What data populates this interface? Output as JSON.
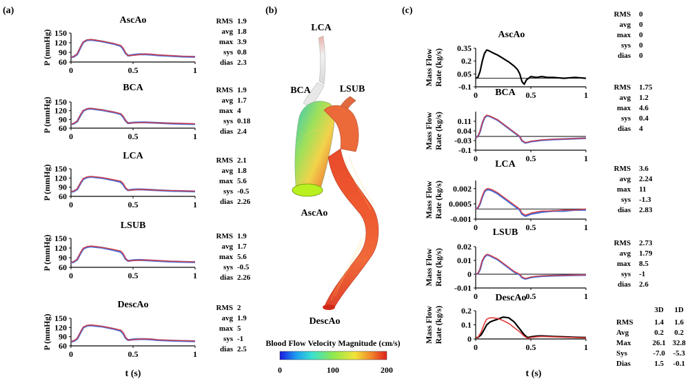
{
  "panel_labels": {
    "a": "(a)",
    "b": "(b)",
    "c": "(c)"
  },
  "colors": {
    "series_3d": "#e03a3a",
    "series_1d": "#4a6fd8",
    "mass_flow_line": "#000000",
    "zero_line": "#000000"
  },
  "panel_a": {
    "ylabel": "P (mmHg)",
    "xlabel": "t (s)"
  },
  "panel_b": {
    "vessel_labels": {
      "lca": "LCA",
      "bca": "BCA",
      "lsub": "LSUB",
      "ascao": "AscAo",
      "descao": "DescAo"
    },
    "colorbar": {
      "title": "Blood Flow Velocity Magnitude (cm/s)",
      "ticks": [
        "0",
        "100",
        "200"
      ]
    }
  },
  "panel_c": {
    "ylabel_line1": "Mass Flow",
    "ylabel_line2": "Rate (kg/s)",
    "xlabel": "t (s)",
    "table_headers": [
      "3D",
      "1D"
    ]
  },
  "stats_a": [
    {
      "rows": [
        [
          "RMS",
          "1.9"
        ],
        [
          "avg",
          "1.8"
        ],
        [
          "max",
          "3.9"
        ],
        [
          "sys",
          "0.8"
        ],
        [
          "dias",
          "2.3"
        ]
      ]
    },
    {
      "rows": [
        [
          "RMS",
          "1.9"
        ],
        [
          "avg",
          "1.7"
        ],
        [
          "max",
          "4"
        ],
        [
          "sys",
          "0.18"
        ],
        [
          "dias",
          "2.4"
        ]
      ]
    },
    {
      "rows": [
        [
          "RMS",
          "2.1"
        ],
        [
          "avg",
          "1.8"
        ],
        [
          "max",
          "5.6"
        ],
        [
          "sys",
          "-0.5"
        ],
        [
          "dias",
          "2.26"
        ]
      ]
    },
    {
      "rows": [
        [
          "RMS",
          "1.9"
        ],
        [
          "avg",
          "1.7"
        ],
        [
          "max",
          "5.6"
        ],
        [
          "sys",
          "-0.5"
        ],
        [
          "dias",
          "2.26"
        ]
      ]
    },
    {
      "rows": [
        [
          "RMS",
          "2"
        ],
        [
          "avg",
          "1.9"
        ],
        [
          "max",
          "5"
        ],
        [
          "sys",
          "-1"
        ],
        [
          "dias",
          "2.5"
        ]
      ]
    }
  ],
  "stats_c": [
    {
      "rows": [
        [
          "RMS",
          "0"
        ],
        [
          "avg",
          "0"
        ],
        [
          "max",
          "0"
        ],
        [
          "sys",
          "0"
        ],
        [
          "dias",
          "0"
        ]
      ]
    },
    {
      "rows": [
        [
          "RMS",
          "1.75"
        ],
        [
          "avg",
          "1.2"
        ],
        [
          "max",
          "4.6"
        ],
        [
          "sys",
          "0.4"
        ],
        [
          "dias",
          "4"
        ]
      ]
    },
    {
      "rows": [
        [
          "RMS",
          "3.6"
        ],
        [
          "avg",
          "2.24"
        ],
        [
          "max",
          "11"
        ],
        [
          "sys",
          "-1.3"
        ],
        [
          "dias",
          "2.83"
        ]
      ]
    },
    {
      "rows": [
        [
          "RMS",
          "2.73"
        ],
        [
          "avg",
          "1.79"
        ],
        [
          "max",
          "8.5"
        ],
        [
          "sys",
          "-1"
        ],
        [
          "dias",
          "2.6"
        ]
      ]
    },
    {
      "rows": [
        [
          "RMS",
          "1.4",
          "1.6"
        ],
        [
          "Avg",
          "0.2",
          "0.2"
        ],
        [
          "Max",
          "26.1",
          "32.8"
        ],
        [
          "Sys",
          "-7.0",
          "-5.3"
        ],
        [
          "Dias",
          "1.5",
          "-0.1"
        ]
      ]
    }
  ],
  "chart_data": [
    {
      "type": "line",
      "title": "AscAo",
      "ylabel": "P (mmHg)",
      "xlabel": "",
      "xlim": [
        0,
        1
      ],
      "ylim": [
        60,
        150
      ],
      "xticks": [
        "0",
        "0.5",
        "1"
      ],
      "yticks": [
        "60",
        "90",
        "120",
        "150"
      ],
      "x": [
        0,
        0.02,
        0.05,
        0.08,
        0.1,
        0.13,
        0.16,
        0.2,
        0.25,
        0.3,
        0.35,
        0.4,
        0.42,
        0.44,
        0.46,
        0.5,
        0.55,
        0.6,
        0.65,
        0.7,
        0.8,
        0.9,
        1.0
      ],
      "series": [
        {
          "values": [
            76,
            77,
            85,
            110,
            123,
            129,
            130,
            128,
            125,
            121,
            117,
            112,
            104,
            88,
            80,
            81,
            83,
            85,
            84,
            82,
            80,
            78,
            77
          ]
        },
        {
          "values": [
            75,
            76,
            84,
            108,
            122,
            128,
            129,
            127,
            124,
            120,
            116,
            110,
            101,
            87,
            80,
            82,
            84,
            84,
            83,
            81,
            79,
            77,
            76
          ]
        }
      ]
    },
    {
      "type": "line",
      "title": "BCA",
      "ylabel": "P (mmHg)",
      "xlabel": "",
      "xlim": [
        0,
        1
      ],
      "ylim": [
        60,
        150
      ],
      "xticks": [
        "0",
        "0.5",
        "1"
      ],
      "yticks": [
        "60",
        "90",
        "120",
        "150"
      ],
      "x": [
        0,
        0.02,
        0.05,
        0.08,
        0.1,
        0.13,
        0.16,
        0.2,
        0.25,
        0.3,
        0.35,
        0.4,
        0.42,
        0.44,
        0.46,
        0.5,
        0.55,
        0.6,
        0.65,
        0.7,
        0.8,
        0.9,
        1.0
      ],
      "series": [
        {
          "values": [
            75,
            76,
            84,
            109,
            121,
            127,
            128,
            126,
            123,
            119,
            115,
            110,
            102,
            86,
            77,
            78,
            79,
            80,
            79,
            78,
            77,
            76,
            75
          ]
        },
        {
          "values": [
            74,
            75,
            83,
            107,
            120,
            126,
            127,
            125,
            122,
            118,
            114,
            108,
            99,
            85,
            77,
            79,
            80,
            80,
            79,
            78,
            76,
            75,
            74
          ]
        }
      ]
    },
    {
      "type": "line",
      "title": "LCA",
      "ylabel": "P (mmHg)",
      "xlabel": "",
      "xlim": [
        0,
        1
      ],
      "ylim": [
        60,
        150
      ],
      "xticks": [
        "0",
        "0.5",
        "1"
      ],
      "yticks": [
        "60",
        "90",
        "120",
        "150"
      ],
      "x": [
        0,
        0.02,
        0.05,
        0.08,
        0.1,
        0.13,
        0.16,
        0.2,
        0.25,
        0.3,
        0.35,
        0.4,
        0.42,
        0.44,
        0.46,
        0.5,
        0.55,
        0.6,
        0.65,
        0.7,
        0.8,
        0.9,
        1.0
      ],
      "series": [
        {
          "values": [
            76,
            77,
            84,
            107,
            119,
            124,
            125,
            124,
            121,
            118,
            114,
            110,
            103,
            88,
            80,
            81,
            82,
            82,
            81,
            80,
            79,
            78,
            77
          ]
        },
        {
          "values": [
            75,
            76,
            83,
            105,
            117,
            122,
            124,
            122,
            120,
            116,
            112,
            107,
            99,
            86,
            80,
            82,
            83,
            82,
            81,
            80,
            78,
            77,
            76
          ]
        }
      ]
    },
    {
      "type": "line",
      "title": "LSUB",
      "ylabel": "P (mmHg)",
      "xlabel": "",
      "xlim": [
        0,
        1
      ],
      "ylim": [
        60,
        150
      ],
      "xticks": [
        "0",
        "0.5",
        "1"
      ],
      "yticks": [
        "60",
        "90",
        "120",
        "150"
      ],
      "x": [
        0,
        0.02,
        0.05,
        0.08,
        0.1,
        0.13,
        0.16,
        0.2,
        0.25,
        0.3,
        0.35,
        0.4,
        0.42,
        0.44,
        0.46,
        0.5,
        0.55,
        0.6,
        0.65,
        0.7,
        0.8,
        0.9,
        1.0
      ],
      "series": [
        {
          "values": [
            76,
            77,
            85,
            108,
            120,
            125,
            126,
            125,
            122,
            119,
            115,
            111,
            103,
            87,
            80,
            81,
            82,
            83,
            82,
            81,
            79,
            78,
            77
          ]
        },
        {
          "values": [
            75,
            76,
            84,
            106,
            118,
            123,
            125,
            123,
            121,
            117,
            113,
            108,
            100,
            86,
            80,
            82,
            83,
            82,
            81,
            80,
            78,
            77,
            76
          ]
        }
      ]
    },
    {
      "type": "line",
      "title": "DescAo",
      "ylabel": "P (mmHg)",
      "xlabel": "t (s)",
      "xlim": [
        0,
        1
      ],
      "ylim": [
        60,
        150
      ],
      "xticks": [
        "0",
        "0.5",
        "1"
      ],
      "yticks": [
        "60",
        "90",
        "120",
        "150"
      ],
      "x": [
        0,
        0.02,
        0.05,
        0.08,
        0.1,
        0.13,
        0.16,
        0.2,
        0.25,
        0.3,
        0.35,
        0.4,
        0.42,
        0.44,
        0.46,
        0.5,
        0.55,
        0.6,
        0.65,
        0.7,
        0.8,
        0.9,
        1.0
      ],
      "series": [
        {
          "values": [
            75,
            76,
            84,
            108,
            122,
            127,
            128,
            127,
            124,
            120,
            116,
            112,
            104,
            88,
            79,
            80,
            82,
            83,
            82,
            80,
            78,
            77,
            76
          ]
        },
        {
          "values": [
            74,
            75,
            83,
            106,
            120,
            126,
            127,
            125,
            123,
            119,
            115,
            109,
            101,
            86,
            79,
            81,
            82,
            82,
            81,
            79,
            77,
            76,
            75
          ]
        }
      ]
    },
    {
      "type": "line",
      "title": "AscAo",
      "ylabel": "Mass Flow Rate (kg/s)",
      "xlabel": "",
      "xlim": [
        0,
        1
      ],
      "ylim": [
        -0.1,
        0.35
      ],
      "xticks": [
        "0",
        "0.5",
        "1"
      ],
      "yticks": [
        "-0.1",
        "0.05",
        "0.2",
        "0.35"
      ],
      "x": [
        0,
        0.02,
        0.04,
        0.06,
        0.08,
        0.1,
        0.12,
        0.15,
        0.2,
        0.25,
        0.3,
        0.35,
        0.38,
        0.4,
        0.42,
        0.44,
        0.46,
        0.5,
        0.55,
        0.6,
        0.65,
        0.7,
        0.8,
        0.9,
        1.0
      ],
      "series": [
        {
          "values": [
            0.0,
            0.01,
            0.08,
            0.2,
            0.29,
            0.33,
            0.32,
            0.3,
            0.27,
            0.23,
            0.19,
            0.14,
            0.1,
            0.05,
            -0.04,
            -0.07,
            -0.02,
            0.02,
            0.01,
            0.02,
            0.01,
            0.01,
            0.0,
            0.01,
            0.0
          ]
        }
      ]
    },
    {
      "type": "line",
      "title": "BCA",
      "ylabel": "Mass Flow Rate (kg/s)",
      "xlabel": "",
      "xlim": [
        0,
        1
      ],
      "ylim": [
        -0.1,
        0.18
      ],
      "xticks": [
        "0",
        "0.5",
        "1"
      ],
      "yticks": [
        "-0.1",
        "-0.03",
        "0.04",
        "0.11"
      ],
      "x": [
        0,
        0.02,
        0.04,
        0.06,
        0.08,
        0.1,
        0.12,
        0.15,
        0.2,
        0.25,
        0.3,
        0.35,
        0.4,
        0.42,
        0.45,
        0.48,
        0.5,
        0.55,
        0.6,
        0.7,
        0.8,
        0.9,
        1.0
      ],
      "series": [
        {
          "values": [
            -0.01,
            0.0,
            0.04,
            0.1,
            0.14,
            0.155,
            0.15,
            0.14,
            0.12,
            0.09,
            0.06,
            0.03,
            0.0,
            -0.03,
            -0.045,
            -0.04,
            -0.035,
            -0.03,
            -0.025,
            -0.02,
            -0.018,
            -0.015,
            -0.012
          ]
        },
        {
          "values": [
            -0.01,
            0.0,
            0.035,
            0.095,
            0.135,
            0.15,
            0.148,
            0.138,
            0.118,
            0.088,
            0.058,
            0.028,
            -0.002,
            -0.032,
            -0.047,
            -0.042,
            -0.037,
            -0.032,
            -0.027,
            -0.022,
            -0.019,
            -0.016,
            -0.013
          ]
        }
      ]
    },
    {
      "type": "line",
      "title": "LCA",
      "ylabel": "Mass Flow Rate (kg/s)",
      "xlabel": "",
      "xlim": [
        0,
        1
      ],
      "ylim": [
        -0.001,
        0.0028
      ],
      "xticks": [
        "0",
        "0.5",
        "1"
      ],
      "yticks": [
        "-0.001",
        "0.0005",
        "0.002"
      ],
      "x": [
        0,
        0.02,
        0.04,
        0.06,
        0.08,
        0.1,
        0.12,
        0.15,
        0.2,
        0.25,
        0.3,
        0.35,
        0.4,
        0.42,
        0.45,
        0.48,
        0.5,
        0.55,
        0.6,
        0.7,
        0.8,
        0.9,
        1.0
      ],
      "series": [
        {
          "values": [
            0.0,
            0.0001,
            0.0006,
            0.0013,
            0.0018,
            0.002,
            0.002,
            0.0019,
            0.0016,
            0.0012,
            0.0008,
            0.0004,
            0.0,
            -0.0004,
            -0.0006,
            -0.0005,
            -0.0004,
            -0.0003,
            -0.0002,
            -0.0002,
            -0.0001,
            -0.0001,
            0.0
          ]
        },
        {
          "values": [
            0.0,
            0.0001,
            0.0005,
            0.0012,
            0.0017,
            0.0019,
            0.0019,
            0.0018,
            0.0015,
            0.0011,
            0.0007,
            0.0003,
            -0.0001,
            -0.0005,
            -0.0007,
            -0.0006,
            -0.0005,
            -0.0004,
            -0.0003,
            -0.0002,
            -0.0002,
            -0.0001,
            -0.0001
          ]
        }
      ]
    },
    {
      "type": "line",
      "title": "LSUB",
      "ylabel": "Mass Flow Rate (kg/s)",
      "xlabel": "",
      "xlim": [
        0,
        1
      ],
      "ylim": [
        -0.01,
        0.02
      ],
      "xticks": [
        "0",
        "0.5",
        "1"
      ],
      "yticks": [
        "-0.01",
        "0",
        "0.01",
        "0.02"
      ],
      "x": [
        0,
        0.02,
        0.04,
        0.06,
        0.08,
        0.1,
        0.12,
        0.15,
        0.2,
        0.25,
        0.3,
        0.35,
        0.4,
        0.42,
        0.45,
        0.48,
        0.5,
        0.55,
        0.6,
        0.7,
        0.8,
        0.9,
        1.0
      ],
      "series": [
        {
          "values": [
            0.0,
            0.0005,
            0.004,
            0.01,
            0.013,
            0.0145,
            0.0142,
            0.013,
            0.011,
            0.008,
            0.005,
            0.002,
            0.0,
            -0.002,
            -0.003,
            -0.0025,
            -0.002,
            -0.0015,
            -0.0012,
            -0.001,
            -0.0008,
            -0.0006,
            -0.0005
          ]
        },
        {
          "values": [
            0.0,
            0.0004,
            0.0035,
            0.0095,
            0.0125,
            0.014,
            0.0138,
            0.0126,
            0.0106,
            0.0076,
            0.0046,
            0.0016,
            -0.0004,
            -0.0024,
            -0.0034,
            -0.0028,
            -0.0023,
            -0.0018,
            -0.0014,
            -0.0011,
            -0.0009,
            -0.0007,
            -0.0006
          ]
        }
      ]
    },
    {
      "type": "line",
      "title": "DescAo",
      "ylabel": "Mass Flow Rate (kg/s)",
      "xlabel": "t (s)",
      "xlim": [
        0,
        1
      ],
      "ylim": [
        0,
        0.2
      ],
      "xticks": [
        "0",
        "0.5",
        "1"
      ],
      "yticks": [
        "0",
        "0.1",
        "0.2"
      ],
      "x": [
        0,
        0.02,
        0.05,
        0.08,
        0.1,
        0.13,
        0.16,
        0.2,
        0.25,
        0.3,
        0.35,
        0.4,
        0.44,
        0.47,
        0.5,
        0.55,
        0.6,
        0.7,
        0.8,
        0.9,
        1.0
      ],
      "series": [
        {
          "values": [
            0.01,
            0.01,
            0.05,
            0.11,
            0.14,
            0.15,
            0.15,
            0.145,
            0.13,
            0.11,
            0.08,
            0.05,
            0.02,
            0.005,
            0.01,
            0.015,
            0.018,
            0.015,
            0.012,
            0.01,
            0.008
          ]
        },
        {
          "values": [
            0.01,
            0.01,
            0.03,
            0.07,
            0.1,
            0.12,
            0.13,
            0.14,
            0.155,
            0.15,
            0.12,
            0.07,
            0.03,
            0.01,
            0.015,
            0.02,
            0.022,
            0.018,
            0.015,
            0.012,
            0.01
          ]
        }
      ]
    }
  ]
}
